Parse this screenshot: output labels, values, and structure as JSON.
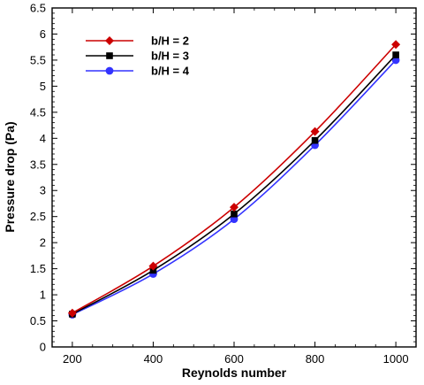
{
  "chart_data": {
    "type": "line",
    "xlabel": "Reynolds number",
    "ylabel": "Pressure drop (Pa)",
    "xlim": [
      150,
      1050
    ],
    "ylim": [
      0,
      6.5
    ],
    "x_ticks": [
      200,
      400,
      600,
      800,
      1000
    ],
    "y_ticks": [
      "0",
      "0.5",
      "1",
      "1.5",
      "2",
      "2.5",
      "3",
      "3.5",
      "4",
      "4.5",
      "5",
      "5.5",
      "6",
      "6.5"
    ],
    "grid": false,
    "legend_position": "top-left",
    "x": [
      200,
      400,
      600,
      800,
      1000
    ],
    "series": [
      {
        "name": "b/H = 2",
        "color": "#cc0000",
        "marker": "diamond",
        "values": [
          0.65,
          1.55,
          2.68,
          4.13,
          5.8
        ]
      },
      {
        "name": "b/H = 3",
        "color": "#000000",
        "marker": "square",
        "values": [
          0.63,
          1.47,
          2.55,
          3.96,
          5.6
        ]
      },
      {
        "name": "b/H = 4",
        "color": "#3333ff",
        "marker": "circle",
        "values": [
          0.62,
          1.4,
          2.45,
          3.87,
          5.5
        ]
      }
    ]
  }
}
